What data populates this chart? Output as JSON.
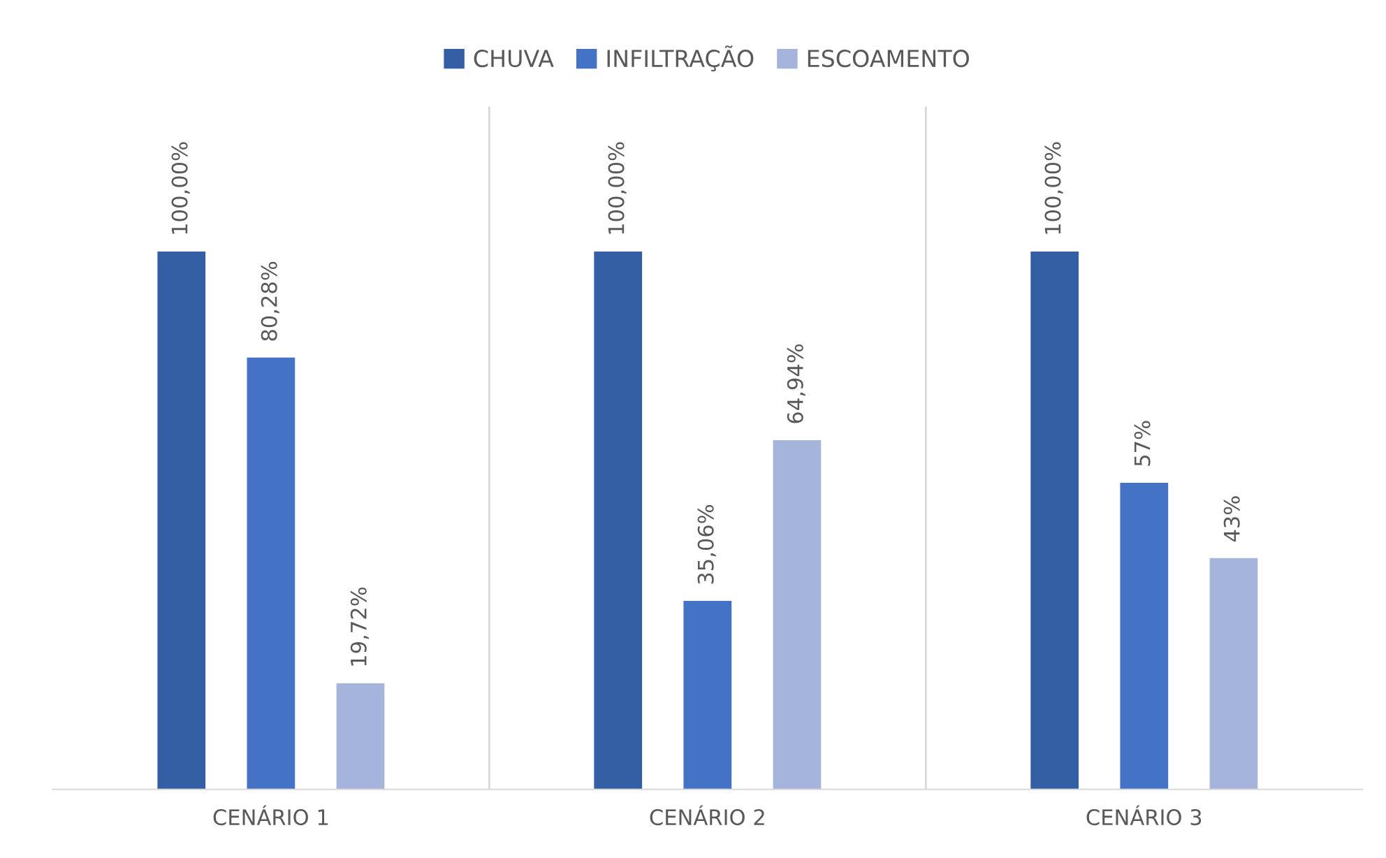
{
  "chart_data": {
    "type": "bar",
    "categories": [
      "CENÁRIO 1",
      "CENÁRIO 2",
      "CENÁRIO 3"
    ],
    "series": [
      {
        "name": "CHUVA",
        "color": "#355fa5",
        "values": [
          100,
          100,
          100
        ],
        "value_labels": [
          "100,00%",
          "100,00%",
          "100,00%"
        ]
      },
      {
        "name": "INFILTRAÇÃO",
        "color": "#4472c4",
        "values": [
          80.28,
          35.06,
          57
        ],
        "value_labels": [
          "80,28%",
          "35,06%",
          "57%"
        ]
      },
      {
        "name": "ESCOAMENTO",
        "color": "#a5b4da",
        "values": [
          19.72,
          64.94,
          43
        ],
        "value_labels": [
          "19,72%",
          "64,94%",
          "43%"
        ]
      }
    ],
    "grid": "x",
    "legend": "top"
  }
}
